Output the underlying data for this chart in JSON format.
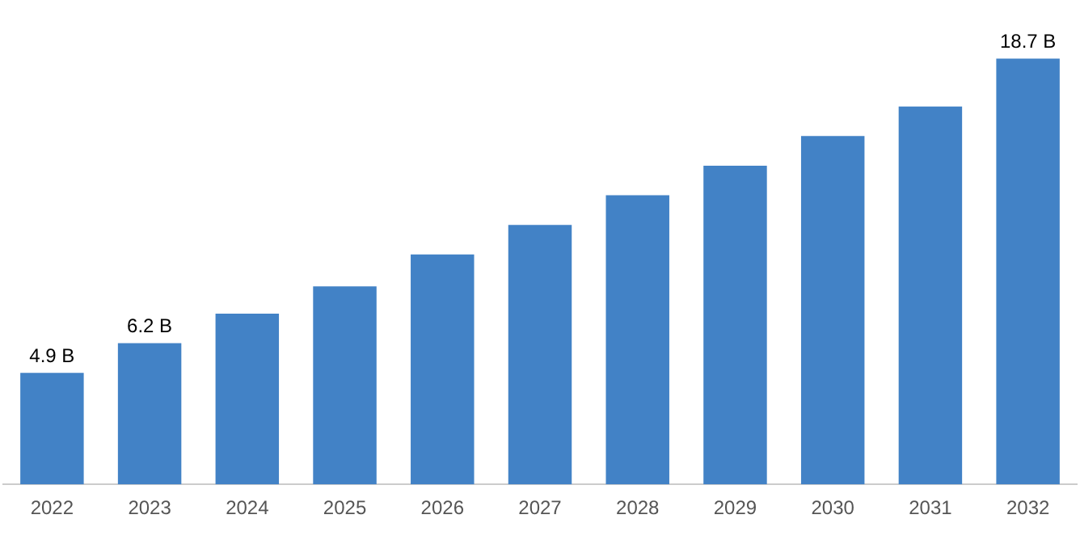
{
  "chart_data": {
    "type": "bar",
    "categories": [
      "2022",
      "2023",
      "2024",
      "2025",
      "2026",
      "2027",
      "2028",
      "2029",
      "2030",
      "2031",
      "2032"
    ],
    "values": [
      4.9,
      6.2,
      7.5,
      8.7,
      10.1,
      11.4,
      12.7,
      14.0,
      15.3,
      16.6,
      18.7
    ],
    "value_labels": [
      "4.9 B",
      "6.2 B",
      null,
      null,
      null,
      null,
      null,
      null,
      null,
      null,
      "18.7 B"
    ],
    "color": "#4282c6",
    "grid": false,
    "legend": false,
    "tick_labels": "x"
  }
}
